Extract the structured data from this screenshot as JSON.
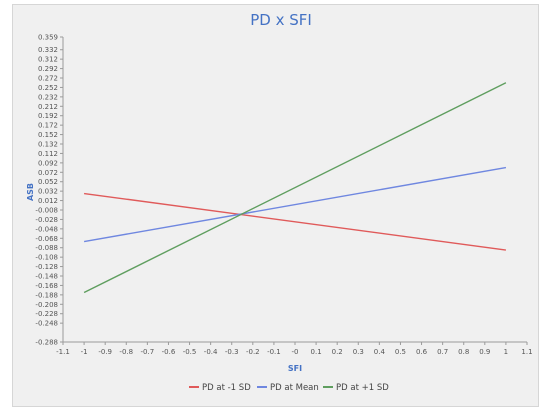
{
  "chart_data": {
    "type": "line",
    "title": "PD x SFI",
    "xlabel": "SFI",
    "ylabel": "ASB",
    "xlim": [
      -1.1,
      1.1
    ],
    "ylim": [
      -0.288,
      0.359
    ],
    "x_ticks": [
      "-1.1",
      "-1",
      "-0.9",
      "-0.8",
      "-0.7",
      "-0.6",
      "-0.5",
      "-0.4",
      "-0.3",
      "-0.2",
      "-0.1",
      "-0",
      "0.1",
      "0.2",
      "0.3",
      "0.4",
      "0.5",
      "0.6",
      "0.7",
      "0.8",
      "0.9",
      "1",
      "1.1"
    ],
    "y_ticks": [
      "0.359",
      "0.332",
      "0.312",
      "0.292",
      "0.272",
      "0.252",
      "0.232",
      "0.212",
      "0.192",
      "0.172",
      "0.152",
      "0.132",
      "0.112",
      "0.092",
      "0.072",
      "0.052",
      "0.032",
      "0.012",
      "-0.008",
      "-0.028",
      "-0.048",
      "-0.068",
      "-0.088",
      "-0.108",
      "-0.128",
      "-0.148",
      "-0.168",
      "-0.188",
      "-0.208",
      "-0.228",
      "-0.248",
      "-0.288"
    ],
    "grid": false,
    "legend_position": "bottom",
    "series": [
      {
        "name": "PD at -1 SD",
        "color": "#e05a5a",
        "x": [
          -1,
          1
        ],
        "y": [
          0.027,
          -0.093
        ]
      },
      {
        "name": "PD at Mean",
        "color": "#6f87e0",
        "x": [
          -1,
          1
        ],
        "y": [
          -0.075,
          0.082
        ]
      },
      {
        "name": "PD at +1 SD",
        "color": "#5f9e5f",
        "x": [
          -1,
          1
        ],
        "y": [
          -0.183,
          0.262
        ]
      }
    ]
  }
}
